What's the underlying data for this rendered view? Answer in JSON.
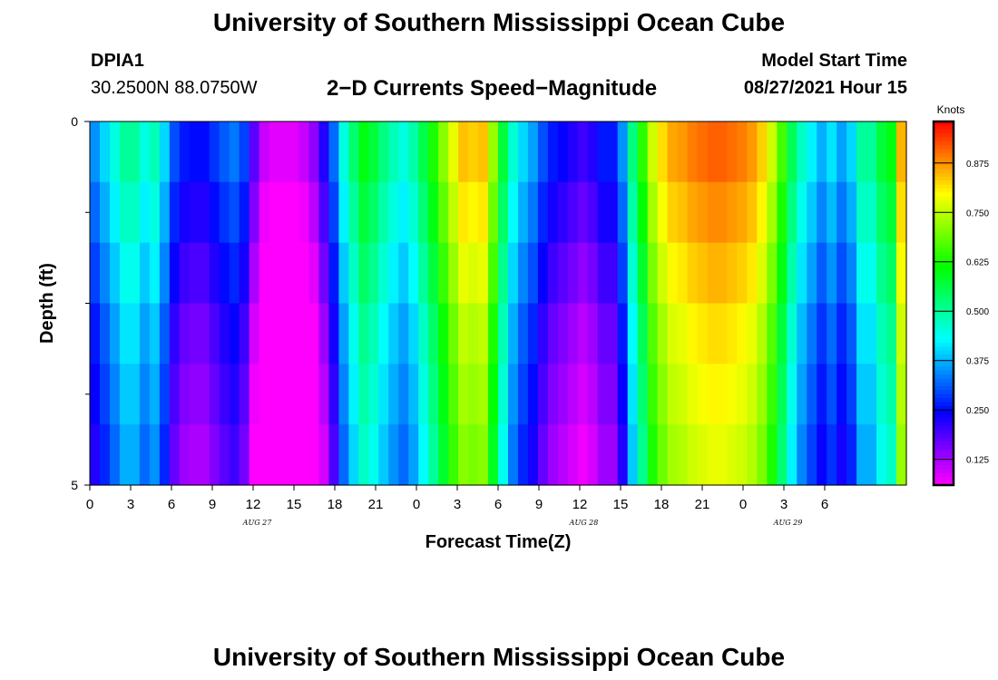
{
  "page": {
    "title_top": "University of Southern Mississippi Ocean Cube",
    "title_bottom": "University of Southern Mississippi Ocean Cube"
  },
  "header": {
    "station": "DPIA1",
    "coords": "30.2500N  88.0750W",
    "plot_title": "2−D Currents Speed−Magnitude",
    "model_start_label": "Model Start Time",
    "model_start_value": "08/27/2021 Hour 15"
  },
  "chart_data": {
    "type": "heatmap",
    "title": "2-D Currents Speed-Magnitude",
    "xlabel": "Forecast Time(Z)",
    "ylabel": "Depth (ft)",
    "x_hours": [
      0,
      60
    ],
    "y_depth": [
      0,
      5
    ],
    "y_tick_labels": [
      "0",
      "5"
    ],
    "y_minor_ticks": [
      1.25,
      2.5,
      3.75
    ],
    "x_ticks": [
      {
        "hour": 0,
        "label": "0"
      },
      {
        "hour": 3,
        "label": "3"
      },
      {
        "hour": 6,
        "label": "6"
      },
      {
        "hour": 9,
        "label": "9"
      },
      {
        "hour": 12,
        "label": "12"
      },
      {
        "hour": 15,
        "label": "15"
      },
      {
        "hour": 18,
        "label": "18"
      },
      {
        "hour": 21,
        "label": "21"
      },
      {
        "hour": 24,
        "label": "0"
      },
      {
        "hour": 27,
        "label": "3"
      },
      {
        "hour": 30,
        "label": "6"
      },
      {
        "hour": 33,
        "label": "9"
      },
      {
        "hour": 36,
        "label": "12"
      },
      {
        "hour": 39,
        "label": "15"
      },
      {
        "hour": 42,
        "label": "18"
      },
      {
        "hour": 45,
        "label": "21"
      },
      {
        "hour": 48,
        "label": "0"
      },
      {
        "hour": 51,
        "label": "3"
      },
      {
        "hour": 54,
        "label": "6"
      }
    ],
    "date_labels": [
      {
        "hour": 12.3,
        "label": "AUG  27"
      },
      {
        "hour": 36.3,
        "label": "AUG  28"
      },
      {
        "hour": 51.3,
        "label": "AUG  29"
      }
    ],
    "depth_layers": 6,
    "speed_profile": [
      0.35,
      0.4,
      0.45,
      0.5,
      0.5,
      0.45,
      0.48,
      0.4,
      0.3,
      0.26,
      0.25,
      0.25,
      0.28,
      0.31,
      0.33,
      0.29,
      0.18,
      0.1,
      0.08,
      0.08,
      0.08,
      0.1,
      0.14,
      0.22,
      0.32,
      0.45,
      0.53,
      0.6,
      0.57,
      0.52,
      0.48,
      0.45,
      0.49,
      0.56,
      0.63,
      0.71,
      0.78,
      0.84,
      0.83,
      0.84,
      0.72,
      0.57,
      0.46,
      0.4,
      0.36,
      0.3,
      0.26,
      0.24,
      0.22,
      0.2,
      0.22,
      0.26,
      0.26,
      0.35,
      0.52,
      0.64,
      0.76,
      0.82,
      0.86,
      0.87,
      0.89,
      0.9,
      0.91,
      0.91,
      0.9,
      0.89,
      0.87,
      0.83,
      0.76,
      0.66,
      0.55,
      0.47,
      0.42,
      0.37,
      0.41,
      0.36,
      0.4,
      0.5,
      0.5,
      0.57,
      0.6,
      0.85
    ],
    "depth_offset": [
      0.0,
      -0.03,
      -0.06,
      -0.09,
      -0.11,
      -0.13
    ],
    "colorbar": {
      "label": "Knots",
      "min": 0.06,
      "max": 0.98,
      "tick_values": [
        0.125,
        0.25,
        0.375,
        0.5,
        0.625,
        0.75,
        0.875
      ],
      "tick_labels": [
        "0.125",
        "0.250",
        "0.375",
        "0.500",
        "0.625",
        "0.750",
        "0.875"
      ]
    }
  }
}
